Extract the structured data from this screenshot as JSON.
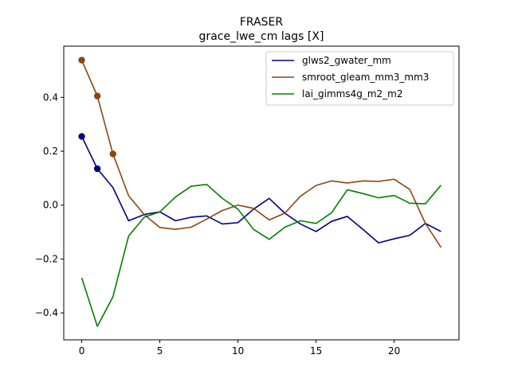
{
  "chart_data": {
    "type": "line",
    "title": "FRASER",
    "subtitle": "grace_lwe_cm lags [X]",
    "xlabel": "",
    "ylabel": "",
    "xlim": [
      -1.15,
      24.15
    ],
    "ylim": [
      -0.5,
      0.59
    ],
    "xticks": [
      0,
      5,
      10,
      15,
      20
    ],
    "yticks": [
      -0.4,
      -0.2,
      0.0,
      0.2,
      0.4
    ],
    "ytick_labels": [
      "−0.4",
      "−0.2",
      "0.0",
      "0.2",
      "0.4"
    ],
    "grid": false,
    "legend_position": "top-right",
    "x": [
      0,
      1,
      2,
      3,
      4,
      5,
      6,
      7,
      8,
      9,
      10,
      11,
      12,
      13,
      14,
      15,
      16,
      17,
      18,
      19,
      20,
      21,
      22,
      23
    ],
    "series": [
      {
        "name": "glws2_gwater_mm",
        "color": "#000080",
        "values": [
          0.255,
          0.135,
          0.065,
          -0.058,
          -0.035,
          -0.025,
          -0.058,
          -0.045,
          -0.04,
          -0.07,
          -0.065,
          -0.015,
          0.025,
          -0.03,
          -0.07,
          -0.098,
          -0.06,
          -0.042,
          -0.09,
          -0.14,
          -0.125,
          -0.112,
          -0.068,
          -0.098
        ],
        "markers": [
          0,
          1
        ]
      },
      {
        "name": "smroot_gleam_mm3_mm3",
        "color": "#8B4513",
        "values": [
          0.538,
          0.405,
          0.19,
          0.035,
          -0.035,
          -0.083,
          -0.09,
          -0.082,
          -0.052,
          -0.02,
          0.0,
          -0.012,
          -0.055,
          -0.03,
          0.033,
          0.073,
          0.09,
          0.082,
          0.09,
          0.088,
          0.096,
          0.058,
          -0.068,
          -0.157
        ],
        "markers": [
          0,
          1,
          2
        ]
      },
      {
        "name": "lai_gimms4g_m2_m2",
        "color": "#008000",
        "values": [
          -0.27,
          -0.45,
          -0.34,
          -0.115,
          -0.045,
          -0.025,
          0.03,
          0.07,
          0.077,
          0.025,
          -0.015,
          -0.09,
          -0.127,
          -0.082,
          -0.058,
          -0.068,
          -0.028,
          0.057,
          0.043,
          0.027,
          0.036,
          0.007,
          0.005,
          0.074
        ],
        "markers": []
      }
    ]
  }
}
